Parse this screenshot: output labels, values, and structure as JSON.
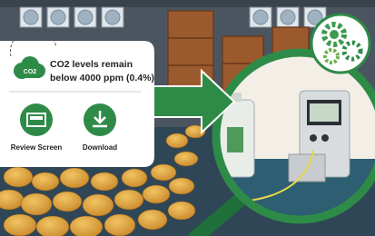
{
  "panel": {
    "icon_label": "CO2",
    "message": [
      "CO2 levels remain",
      "below 4000 ppm (0.4%)"
    ],
    "actions": [
      "Review Screen",
      "Download"
    ]
  }
}
